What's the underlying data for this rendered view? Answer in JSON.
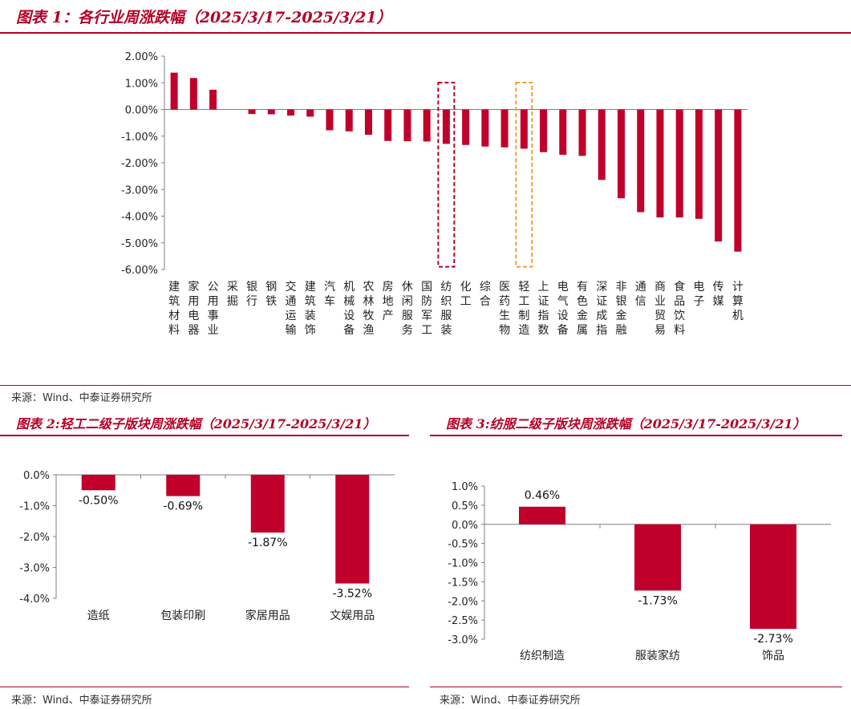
{
  "fig1": {
    "title": "图表 1：各行业周涨跌幅（2025/3/17-2025/3/21）",
    "source": "来源：Wind、中泰证券研究所"
  },
  "fig2": {
    "title": "图表 2:轻工二级子版块周涨跌幅（2025/3/17-2025/3/21）",
    "source": "来源：Wind、中泰证券研究所"
  },
  "fig3": {
    "title": "图表 3:纺服二级子版块周涨跌幅（2025/3/17-2025/3/21）",
    "source": "来源：Wind、中泰证券研究所"
  },
  "chart_data": [
    {
      "type": "bar",
      "title": "各行业周涨跌幅（2025/3/17-2025/3/21）",
      "categories": [
        "建筑材料",
        "家用电器",
        "公用事业",
        "采掘",
        "银行",
        "钢铁",
        "交通运输",
        "建筑装饰",
        "汽车",
        "机械设备",
        "农林牧渔",
        "房地产",
        "休闲服务",
        "国防军工",
        "纺织服装",
        "化工",
        "综合",
        "医药生物",
        "轻工制造",
        "上证指数",
        "电气设备",
        "有色金属",
        "深证成指",
        "非银金融",
        "通信",
        "商业贸易",
        "食品饮料",
        "电子",
        "传媒",
        "计算机"
      ],
      "values": [
        1.38,
        1.18,
        0.74,
        0.0,
        -0.17,
        -0.18,
        -0.23,
        -0.27,
        -0.78,
        -0.82,
        -0.95,
        -1.18,
        -1.19,
        -1.2,
        -1.29,
        -1.33,
        -1.39,
        -1.42,
        -1.47,
        -1.6,
        -1.7,
        -1.74,
        -2.64,
        -3.33,
        -3.85,
        -4.05,
        -4.05,
        -4.1,
        -4.95,
        -5.33
      ],
      "ylim": [
        -6.0,
        2.0
      ],
      "yticks": [
        "2.00%",
        "1.00%",
        "0.00%",
        "-1.00%",
        "-2.00%",
        "-3.00%",
        "-4.00%",
        "-5.00%",
        "-6.00%"
      ],
      "highlights": [
        {
          "category": "纺织服装",
          "color": "#b30025"
        },
        {
          "category": "轻工制造",
          "color": "#f0a030"
        }
      ],
      "bar_color": "#c0002a",
      "grid": false
    },
    {
      "type": "bar",
      "title": "轻工二级子版块周涨跌幅（2025/3/17-2025/3/21）",
      "categories": [
        "造纸",
        "包装印刷",
        "家居用品",
        "文娱用品"
      ],
      "values": [
        -0.5,
        -0.69,
        -1.87,
        -3.52
      ],
      "data_labels": [
        "-0.50%",
        "-0.69%",
        "-1.87%",
        "-3.52%"
      ],
      "ylim": [
        -4.0,
        0.0
      ],
      "yticks": [
        "0.0%",
        "-1.0%",
        "-2.0%",
        "-3.0%",
        "-4.0%"
      ],
      "bar_color": "#c0002a",
      "grid": false
    },
    {
      "type": "bar",
      "title": "纺服二级子版块周涨跌幅（2025/3/17-2025/3/21）",
      "categories": [
        "纺织制造",
        "服装家纺",
        "饰品"
      ],
      "values": [
        0.46,
        -1.73,
        -2.73
      ],
      "data_labels": [
        "0.46%",
        "-1.73%",
        "-2.73%"
      ],
      "ylim": [
        -3.0,
        1.0
      ],
      "yticks": [
        "1.0%",
        "0.5%",
        "0.0%",
        "-0.5%",
        "-1.0%",
        "-1.5%",
        "-2.0%",
        "-2.5%",
        "-3.0%"
      ],
      "bar_color": "#c0002a",
      "grid": false
    }
  ]
}
